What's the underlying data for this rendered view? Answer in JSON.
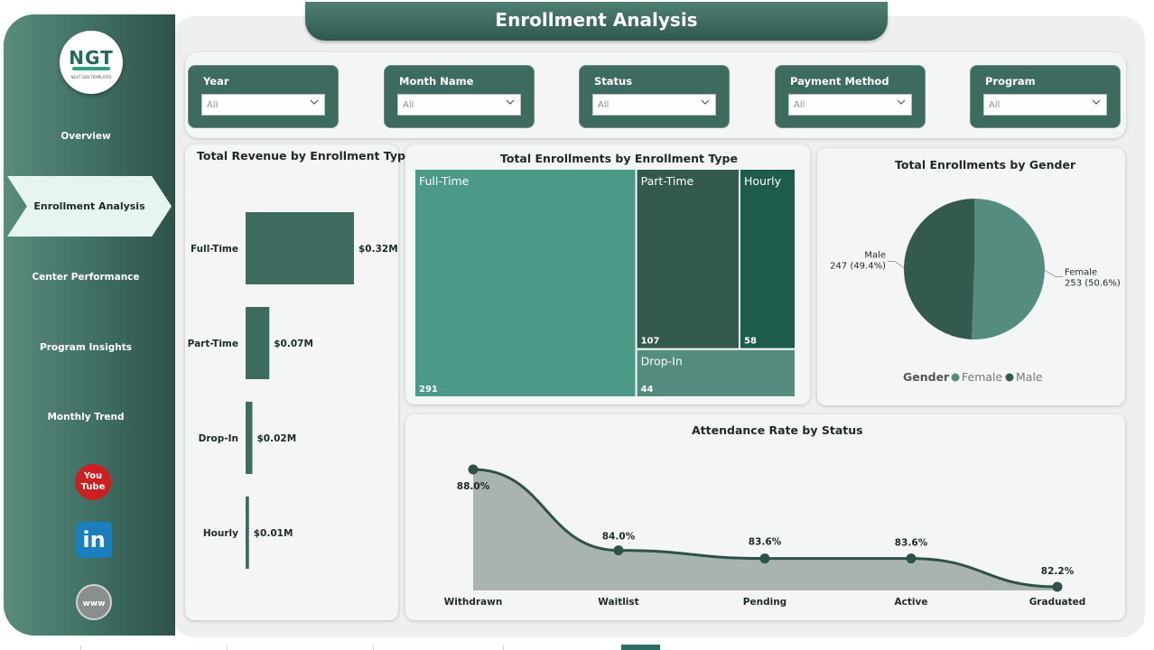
{
  "page": {
    "title": "Enrollment Analysis"
  },
  "logo": {
    "mark": "NGT",
    "sub": "NEXT GEN TEMPLATES"
  },
  "nav": {
    "items": [
      "Overview",
      "Enrollment Analysis",
      "Center Performance",
      "Program Insights",
      "Monthly Trend"
    ],
    "active": "Enrollment Analysis"
  },
  "social": {
    "youtube": "You Tube",
    "linkedin": "in",
    "web": "www"
  },
  "filters": [
    {
      "label": "Year",
      "value": "All"
    },
    {
      "label": "Month Name",
      "value": "All"
    },
    {
      "label": "Status",
      "value": "All"
    },
    {
      "label": "Payment Method",
      "value": "All"
    },
    {
      "label": "Program",
      "value": "All"
    }
  ],
  "colors": {
    "primary": "#3e6b5f",
    "accent": "#4b9a88",
    "dark": "#345a50",
    "deep": "#1d5b4c",
    "mid": "#548c7f",
    "light": "#e6f5ef"
  },
  "chart_data": [
    {
      "type": "bar",
      "orientation": "horizontal",
      "title": "Total Revenue by Enrollment Type",
      "categories": [
        "Full-Time",
        "Part-Time",
        "Drop-In",
        "Hourly"
      ],
      "values": [
        0.32,
        0.07,
        0.02,
        0.01
      ],
      "labels": [
        "$0.32M",
        "$0.07M",
        "$0.02M",
        "$0.01M"
      ],
      "unit": "$M"
    },
    {
      "type": "treemap",
      "title": "Total Enrollments by Enrollment Type",
      "categories": [
        "Full-Time",
        "Part-Time",
        "Hourly",
        "Drop-In"
      ],
      "values": [
        291,
        107,
        58,
        44
      ]
    },
    {
      "type": "pie",
      "title": "Total Enrollments by Gender",
      "legend_title": "Gender",
      "legend_position": "bottom",
      "slices": [
        {
          "label": "Female",
          "value": 253,
          "pct": "50.6%",
          "text": "253 (50.6%)",
          "color": "#548c7f"
        },
        {
          "label": "Male",
          "value": 247,
          "pct": "49.4%",
          "text": "247 (49.4%)",
          "color": "#345a50"
        }
      ]
    },
    {
      "type": "area",
      "title": "Attendance Rate by Status",
      "categories": [
        "Withdrawn",
        "Waitlist",
        "Pending",
        "Active",
        "Graduated"
      ],
      "values": [
        88.0,
        84.0,
        83.6,
        83.6,
        82.2
      ],
      "labels": [
        "88.0%",
        "84.0%",
        "83.6%",
        "83.6%",
        "82.2%"
      ],
      "unit": "%"
    }
  ]
}
